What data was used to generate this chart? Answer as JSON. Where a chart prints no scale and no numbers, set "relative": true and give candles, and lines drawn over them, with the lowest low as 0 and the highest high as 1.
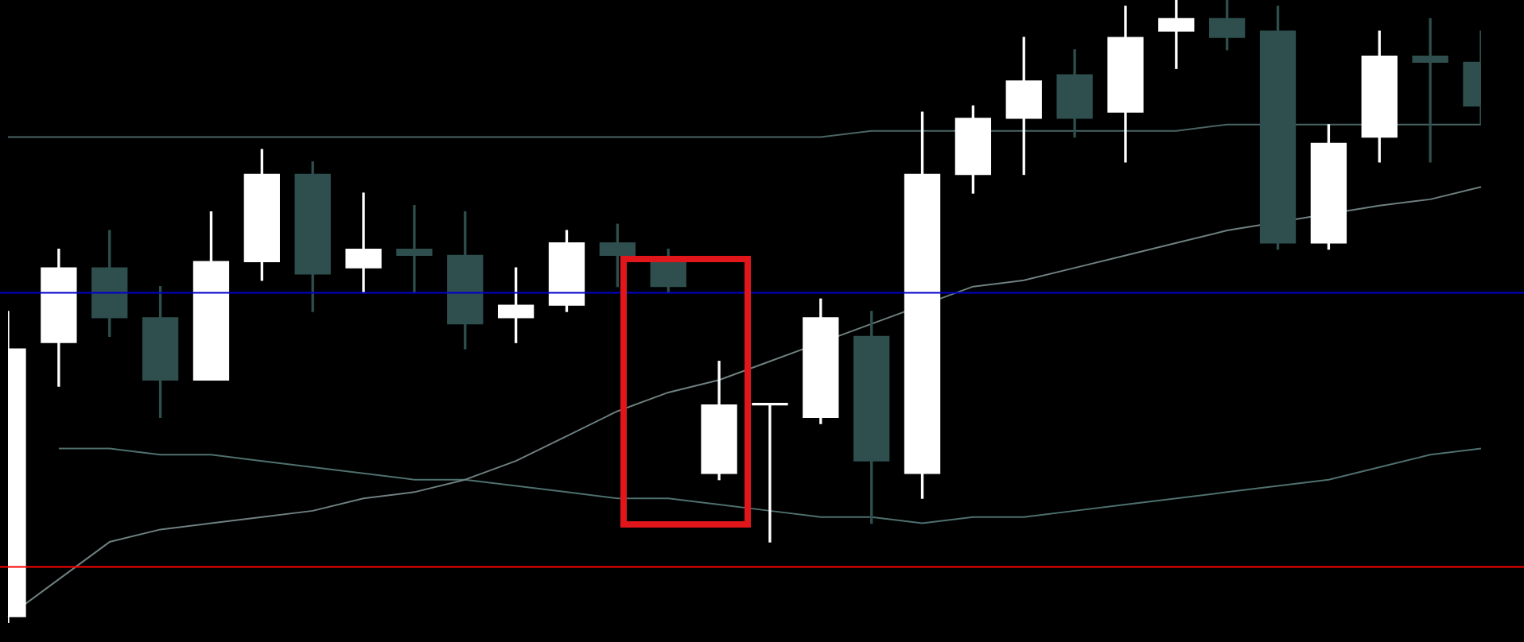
{
  "chart_data": {
    "type": "candlestick",
    "relative": true,
    "categories": [
      null,
      null,
      null,
      null,
      null,
      null,
      null,
      null,
      null,
      null,
      null,
      null,
      null,
      null,
      null,
      null,
      null,
      null,
      null,
      null,
      null,
      null,
      null,
      null,
      null,
      null,
      null,
      null,
      null,
      null
    ],
    "ohlc": [
      [
        0.01,
        0.5,
        0,
        0.44
      ],
      [
        0.45,
        0.6,
        0.38,
        0.57
      ],
      [
        0.57,
        0.63,
        0.46,
        0.49
      ],
      [
        0.49,
        0.54,
        0.33,
        0.39
      ],
      [
        0.39,
        0.66,
        0.39,
        0.58
      ],
      [
        0.58,
        0.76,
        0.55,
        0.72
      ],
      [
        0.72,
        0.74,
        0.5,
        0.56
      ],
      [
        0.57,
        0.69,
        0.53,
        0.6
      ],
      [
        0.6,
        0.67,
        0.53,
        0.59
      ],
      [
        0.59,
        0.66,
        0.44,
        0.48
      ],
      [
        0.49,
        0.57,
        0.45,
        0.51
      ],
      [
        0.51,
        0.63,
        0.5,
        0.61
      ],
      [
        0.61,
        0.64,
        0.54,
        0.59
      ],
      [
        0.58,
        0.6,
        0.53,
        0.54
      ],
      [
        0.24,
        0.42,
        0.23,
        0.35
      ],
      [
        0.35,
        0.35,
        0.13,
        0.35
      ],
      [
        0.33,
        0.52,
        0.32,
        0.49
      ],
      [
        0.46,
        0.5,
        0.16,
        0.26
      ],
      [
        0.24,
        0.82,
        0.2,
        0.72
      ],
      [
        0.72,
        0.83,
        0.69,
        0.81
      ],
      [
        0.81,
        0.94,
        0.72,
        0.87
      ],
      [
        0.88,
        0.92,
        0.78,
        0.81
      ],
      [
        0.82,
        0.99,
        0.74,
        0.94
      ],
      [
        0.95,
        1,
        0.89,
        0.97
      ],
      [
        0.97,
        1,
        0.92,
        0.94
      ],
      [
        0.95,
        0.99,
        0.6,
        0.61
      ],
      [
        0.61,
        0.8,
        0.6,
        0.77
      ],
      [
        0.78,
        0.95,
        0.74,
        0.91
      ],
      [
        0.91,
        0.97,
        0.74,
        0.9
      ],
      [
        0.9,
        0.95,
        0.8,
        0.83
      ]
    ],
    "colors": [
      "#ffffff",
      "#ffffff",
      "#2f4f4f",
      "#2f4f4f",
      "#ffffff",
      "#ffffff",
      "#2f4f4f",
      "#ffffff",
      "#2f4f4f",
      "#2f4f4f",
      "#ffffff",
      "#ffffff",
      "#2f4f4f",
      "#2f4f4f",
      "#ffffff",
      "#ffffff",
      "#ffffff",
      "#2f4f4f",
      "#ffffff",
      "#ffffff",
      "#ffffff",
      "#2f4f4f",
      "#ffffff",
      "#ffffff",
      "#2f4f4f",
      "#2f4f4f",
      "#ffffff",
      "#ffffff",
      "#2f4f4f",
      "#2f4f4f"
    ],
    "series": [
      {
        "type": "line",
        "color": "#4a6464",
        "values": [
          0.78,
          0.78,
          0.78,
          0.78,
          0.78,
          0.78,
          0.78,
          0.78,
          0.78,
          0.78,
          0.78,
          0.78,
          0.78,
          0.78,
          0.78,
          0.78,
          0.78,
          0.79,
          0.79,
          null,
          0.79,
          0.79,
          0.79,
          0.79,
          0.8,
          null,
          0.8,
          null,
          0.8,
          0.8
        ]
      },
      {
        "type": "line",
        "color": "#6f8080",
        "values": [
          0.01,
          0.07,
          0.13,
          0.15,
          0.16,
          0.17,
          0.18,
          0.2,
          0.21,
          0.23,
          0.26,
          0.3,
          0.34,
          0.37,
          0.39,
          0.42,
          null,
          0.48,
          null,
          0.54,
          0.55,
          0.57,
          0.59,
          0.61,
          0.63,
          null,
          null,
          0.67,
          0.68,
          0.7
        ]
      },
      {
        "type": "line",
        "color": "#4f7070",
        "values": [
          null,
          0.28,
          0.28,
          0.27,
          0.27,
          0.26,
          0.25,
          0.24,
          0.23,
          0.23,
          0.22,
          0.21,
          0.2,
          0.2,
          0.19,
          0.18,
          0.17,
          0.17,
          0.16,
          0.17,
          0.17,
          0.18,
          0.19,
          0.2,
          0.21,
          0.22,
          0.23,
          0.25,
          0.27,
          0.28
        ]
      }
    ],
    "ref_lines": [
      {
        "axis": "y",
        "value": 0.53,
        "color": "#0000cd"
      },
      {
        "axis": "y",
        "value": 0.09,
        "color": "#ff0000"
      }
    ]
  }
}
